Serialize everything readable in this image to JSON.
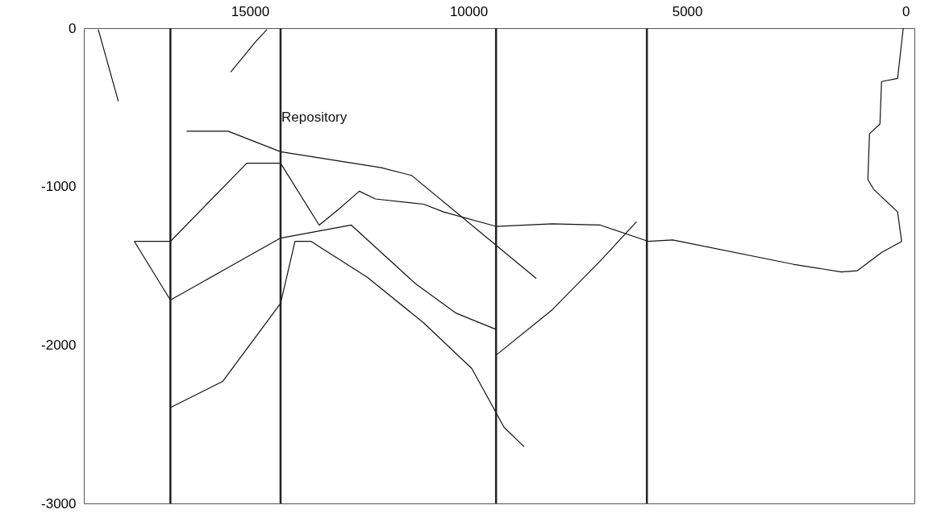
{
  "chart_data": {
    "type": "line",
    "xlim": [
      18800,
      -200
    ],
    "xticks": [
      15000,
      10000,
      5000,
      0
    ],
    "ylim": [
      -3000,
      0
    ],
    "yticks": [
      0,
      -1000,
      -2000,
      -3000
    ],
    "grid": false,
    "marker": "none",
    "line_style": "solid",
    "annotations": [
      "Repository"
    ],
    "ref_lines": [
      {
        "axis": "x",
        "value": 16820,
        "label": null
      },
      {
        "axis": "x",
        "value": 14300,
        "label": null
      },
      {
        "axis": "x",
        "value": 9370,
        "label": null
      },
      {
        "axis": "x",
        "value": 5920,
        "label": null
      }
    ],
    "series": [
      {
        "color": "#111111",
        "x": [
          16450,
          15500,
          14300,
          12000,
          11300,
          8450
        ],
        "values": [
          -650,
          -650,
          -780,
          -880,
          -930,
          -1580
        ]
      },
      {
        "color": "#111111",
        "x": [
          55,
          184,
          551,
          588,
          827,
          864,
          735,
          184,
          92,
          551,
          1103,
          1470,
          2573,
          5330,
          5882,
          6985,
          8087,
          9374,
          10570,
          11028,
          12131,
          12498,
          12958,
          13417,
          14300,
          15072,
          16820,
          17645
        ],
        "values": [
          0,
          -317,
          -337,
          -605,
          -667,
          -955,
          -1016,
          -1160,
          -1346,
          -1416,
          -1531,
          -1539,
          -1490,
          -1337,
          -1346,
          -1243,
          -1235,
          -1251,
          -1160,
          -1111,
          -1078,
          -1029,
          -1140,
          -1243,
          -852,
          -852,
          -1346,
          -1346
        ]
      },
      {
        "color": "#111111",
        "x": [
          17645,
          16820,
          15625,
          14300,
          12682,
          11212,
          10293,
          9374
        ],
        "values": [
          -1346,
          -1716,
          -1531,
          -1325,
          -1243,
          -1613,
          -1798,
          -1901
        ]
      },
      {
        "color": "#111111",
        "x": [
          16820,
          15625,
          14300,
          13969,
          13601,
          12315,
          11028,
          9925,
          9190,
          8730
        ],
        "values": [
          -2395,
          -2230,
          -1737,
          -1346,
          -1346,
          -1572,
          -1860,
          -2148,
          -2518,
          -2642
        ]
      },
      {
        "color": "#111111",
        "x": [
          9374,
          8087,
          6985,
          6158
        ],
        "values": [
          -2065,
          -1778,
          -1469,
          -1222
        ]
      },
      {
        "color": "#111111",
        "x": [
          18470,
          18012
        ],
        "values": [
          -8,
          -461
        ]
      },
      {
        "color": "#111111",
        "x": [
          15440,
          14888,
          14612
        ],
        "values": [
          -276,
          -91,
          -8
        ]
      }
    ]
  }
}
